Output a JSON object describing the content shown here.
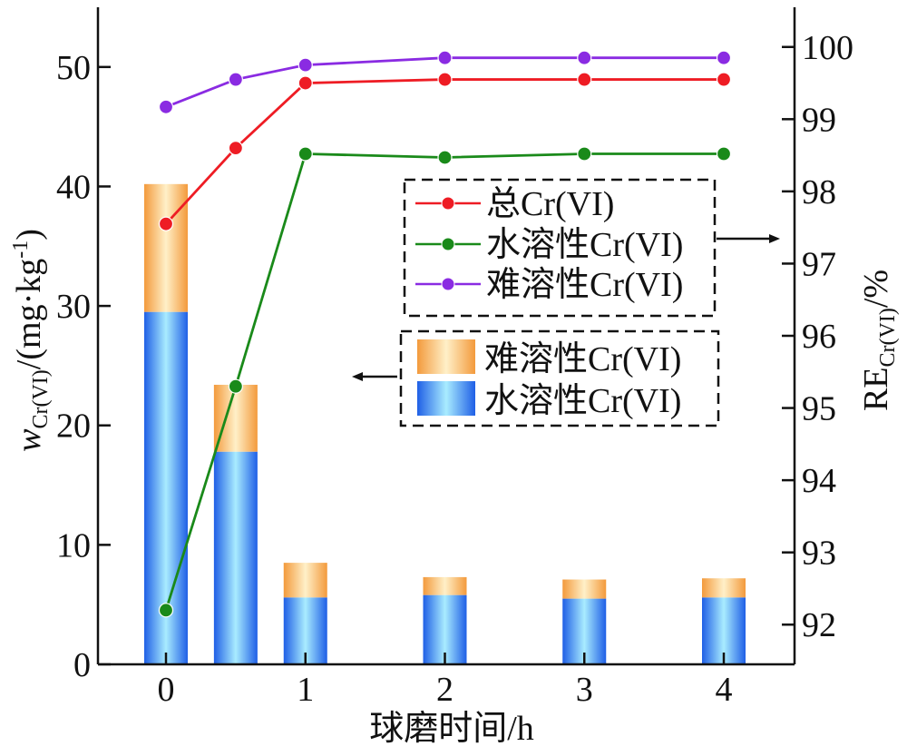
{
  "chart_data": {
    "type": "bar",
    "x_ticks": [
      "0",
      "1",
      "2",
      "3",
      "4"
    ],
    "x_title": "球磨时间/h",
    "left_axis": {
      "title_main": "w",
      "title_sub": "Cr(VI)",
      "title_unit": "/(mg·kg",
      "title_sup": "-1",
      "title_close": ")",
      "ylim": [
        0,
        55
      ],
      "ticks": [
        "0",
        "10",
        "20",
        "30",
        "40",
        "50"
      ]
    },
    "right_axis": {
      "title_main": "RE",
      "title_sub": "Cr(VI)",
      "title_unit": "/%",
      "ylim": [
        91.45,
        100.55
      ],
      "ticks": [
        "92",
        "93",
        "94",
        "95",
        "96",
        "97",
        "98",
        "99",
        "100"
      ]
    },
    "bars": {
      "x": [
        0,
        0.5,
        1,
        2,
        3,
        4
      ],
      "series": [
        {
          "name": "水溶性Cr(VI)",
          "values": [
            29.5,
            17.8,
            5.6,
            5.8,
            5.5,
            5.6
          ],
          "color_top": "#1f5fe6",
          "color_mid": "#a9ecff"
        },
        {
          "name": "难溶性Cr(VI)",
          "values": [
            10.7,
            5.6,
            2.9,
            1.5,
            1.6,
            1.6
          ],
          "color_edge": "#f39a3c",
          "color_mid": "#fff0c8"
        }
      ]
    },
    "lines": {
      "x": [
        0,
        0.5,
        1,
        2,
        3,
        4
      ],
      "series": [
        {
          "name": "总Cr(VI)",
          "values": [
            97.55,
            98.6,
            99.5,
            99.55,
            99.55,
            99.55
          ],
          "color": "#ee1c24"
        },
        {
          "name": "水溶性Cr(VI)",
          "values": [
            92.2,
            95.3,
            98.52,
            98.47,
            98.52,
            98.52
          ],
          "color": "#1a8a1a"
        },
        {
          "name": "难溶性Cr(VI)",
          "values": [
            99.17,
            99.55,
            99.75,
            99.85,
            99.85,
            99.85
          ],
          "color": "#8a2be2"
        }
      ]
    },
    "legend_lines": [
      "总Cr(VI)",
      "水溶性Cr(VI)",
      "难溶性Cr(VI)"
    ],
    "legend_bars": [
      "难溶性Cr(VI)",
      "水溶性Cr(VI)"
    ],
    "grid": false
  }
}
